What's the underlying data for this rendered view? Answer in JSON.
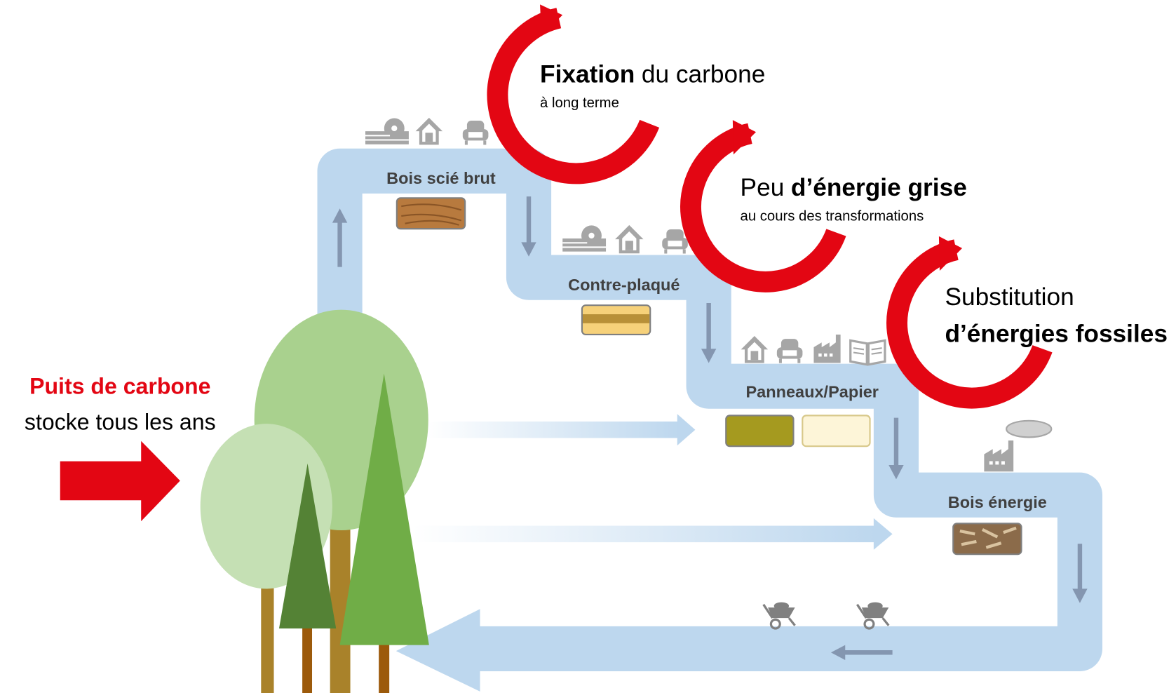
{
  "carbon_sink": {
    "title": "Puits de carbone",
    "subtitle": "stocke tous les ans"
  },
  "stages": [
    "Bois scié brut",
    "Contre-plaqué",
    "Panneaux/Papier",
    "Bois énergie"
  ],
  "callouts": [
    {
      "title": [
        "Fixation",
        "du carbone"
      ],
      "subtitle": "à long terme"
    },
    {
      "title": [
        "Peu",
        "d’énergie grise"
      ],
      "subtitle": "au cours des transformations"
    },
    {
      "title": "Substitution",
      "subtitle": "d’énergies fossiles"
    }
  ]
}
